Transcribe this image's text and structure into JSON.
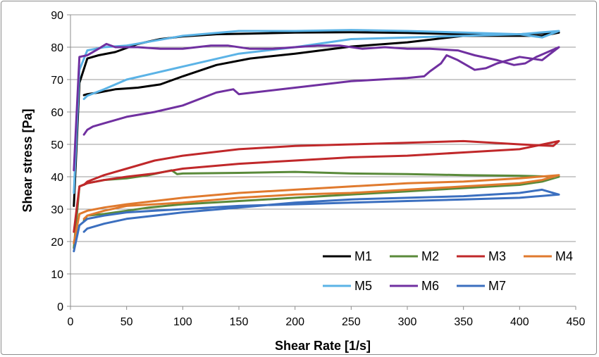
{
  "chart_data": {
    "type": "line",
    "title": "",
    "xlabel": "Shear Rate [1/s]",
    "ylabel": "Shear stress  [Pa]",
    "xlim": [
      0,
      450
    ],
    "ylim": [
      0,
      90
    ],
    "xticks": [
      0,
      50,
      100,
      150,
      200,
      250,
      300,
      350,
      400,
      450
    ],
    "yticks": [
      0,
      10,
      20,
      30,
      40,
      50,
      60,
      70,
      80,
      90
    ],
    "grid": "horizontal",
    "legend_position": "bottom-right",
    "series": [
      {
        "name": "M1",
        "color": "#000000",
        "x": [
          3,
          8,
          15,
          25,
          40,
          60,
          80,
          100,
          130,
          160,
          200,
          250,
          300,
          350,
          400,
          435,
          420,
          400,
          350,
          300,
          250,
          200,
          160,
          130,
          100,
          80,
          60,
          40,
          25,
          15,
          12
        ],
        "y": [
          31,
          69,
          76.5,
          77.5,
          78.5,
          81,
          82.5,
          83.3,
          84,
          84.2,
          84.5,
          84.6,
          84.4,
          84,
          84,
          84.5,
          83.5,
          83.5,
          83.5,
          81.5,
          80.2,
          78,
          76.5,
          74.5,
          71,
          68.5,
          67.5,
          67,
          66,
          65.5,
          65.2
        ]
      },
      {
        "name": "M2",
        "color": "#5a8a3a",
        "x": [
          3,
          8,
          15,
          30,
          50,
          70,
          90,
          95,
          100,
          150,
          200,
          250,
          300,
          350,
          400,
          435,
          420,
          400,
          350,
          300,
          250,
          200,
          150,
          100,
          70,
          50,
          30,
          15,
          12
        ],
        "y": [
          18,
          37,
          38,
          39,
          39.5,
          40.5,
          42,
          40.8,
          41,
          41.2,
          41.5,
          41,
          40.8,
          40.5,
          40.3,
          40,
          38.5,
          37.5,
          36.5,
          35.5,
          34.5,
          33.5,
          32.5,
          31.5,
          30.5,
          29.5,
          28.5,
          28,
          26.5
        ]
      },
      {
        "name": "M3",
        "color": "#c0282a",
        "x": [
          3,
          8,
          15,
          30,
          50,
          75,
          100,
          150,
          200,
          250,
          300,
          350,
          400,
          435,
          430,
          400,
          350,
          300,
          250,
          200,
          150,
          100,
          75,
          50,
          30,
          15,
          12
        ],
        "y": [
          23,
          37,
          38,
          39,
          40,
          41,
          42.5,
          44,
          45,
          46,
          46.5,
          47.5,
          48.5,
          51,
          49.5,
          50,
          51,
          50.5,
          50,
          49.5,
          48.5,
          46.5,
          45,
          42.5,
          40.5,
          38.5,
          37.5
        ]
      },
      {
        "name": "M4",
        "color": "#e07a2e",
        "x": [
          3,
          8,
          15,
          30,
          50,
          75,
          100,
          150,
          200,
          250,
          300,
          350,
          400,
          435,
          420,
          400,
          350,
          300,
          250,
          200,
          150,
          100,
          75,
          50,
          30,
          15,
          12
        ],
        "y": [
          19.5,
          28.5,
          29.5,
          30.5,
          31.5,
          32.5,
          33.5,
          35,
          36,
          37,
          38,
          38.5,
          39.5,
          40.5,
          39,
          38,
          37,
          36,
          35,
          34.5,
          33.5,
          32,
          31.5,
          31,
          29.5,
          28,
          27
        ]
      },
      {
        "name": "M5",
        "color": "#5bb3e6",
        "x": [
          3,
          8,
          15,
          30,
          50,
          75,
          100,
          150,
          200,
          250,
          300,
          350,
          400,
          435,
          420,
          400,
          350,
          300,
          250,
          200,
          150,
          100,
          75,
          50,
          30,
          15,
          12
        ],
        "y": [
          35,
          73,
          79,
          80,
          80.5,
          82,
          83.5,
          85,
          85,
          85.3,
          85,
          84.5,
          84,
          85,
          83,
          84,
          83.5,
          83,
          82.5,
          80,
          78,
          74,
          72,
          70,
          67,
          65,
          64
        ]
      },
      {
        "name": "M6",
        "color": "#7030a0",
        "x": [
          3,
          8,
          15,
          25,
          32,
          40,
          60,
          80,
          100,
          125,
          140,
          160,
          180,
          200,
          220,
          240,
          260,
          280,
          300,
          320,
          345,
          360,
          380,
          395,
          405,
          415,
          435,
          420,
          400,
          380,
          370,
          360,
          345,
          335,
          330,
          320,
          315,
          300,
          250,
          200,
          150,
          145,
          130,
          100,
          75,
          50,
          30,
          20,
          15,
          12
        ],
        "y": [
          42,
          77,
          77.5,
          79.5,
          81,
          80,
          80,
          79.5,
          79.5,
          80.5,
          80.5,
          79.5,
          79.5,
          80,
          80.5,
          80.5,
          79.5,
          80,
          79.5,
          79.5,
          79,
          77.5,
          76,
          74.5,
          75,
          77,
          80,
          76,
          77,
          75,
          73.5,
          73,
          76,
          77.5,
          75,
          72.5,
          71,
          70.5,
          69.5,
          67.5,
          65.5,
          67,
          66,
          62,
          60,
          58.5,
          56.5,
          55.5,
          54.5,
          53
        ]
      },
      {
        "name": "M7",
        "color": "#3b6fbf",
        "x": [
          3,
          8,
          15,
          30,
          50,
          75,
          100,
          150,
          200,
          250,
          300,
          350,
          400,
          435,
          420,
          400,
          350,
          300,
          250,
          200,
          150,
          100,
          75,
          50,
          30,
          15,
          12
        ],
        "y": [
          17,
          25,
          27,
          28,
          29,
          29.5,
          30,
          31,
          31.5,
          32,
          32.5,
          33,
          33.5,
          34.5,
          36,
          35,
          34,
          33.5,
          33,
          32,
          30.5,
          29,
          28,
          27,
          25.5,
          24,
          23
        ]
      }
    ]
  }
}
